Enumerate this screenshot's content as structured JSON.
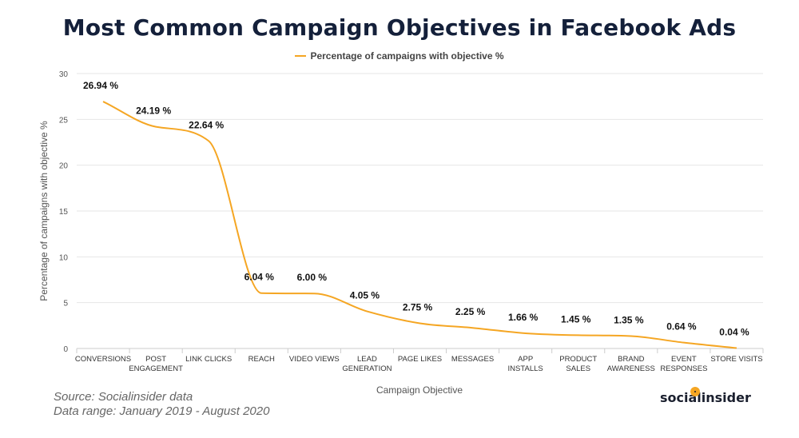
{
  "chart_data": {
    "type": "line",
    "title": "Most Common Campaign Objectives in Facebook Ads",
    "xlabel": "Campaign Objective",
    "ylabel": "Percentage of campaigns with objective %",
    "ylim": [
      0,
      30
    ],
    "yticks": [
      0,
      5,
      10,
      15,
      20,
      25,
      30
    ],
    "grid": true,
    "legend_position": "top-center",
    "categories": [
      [
        "CONVERSIONS"
      ],
      [
        "POST",
        "ENGAGEMENT"
      ],
      [
        "LINK CLICKS"
      ],
      [
        "REACH"
      ],
      [
        "VIDEO VIEWS"
      ],
      [
        "LEAD",
        "GENERATION"
      ],
      [
        "PAGE LIKES"
      ],
      [
        "MESSAGES"
      ],
      [
        "APP",
        "INSTALLS"
      ],
      [
        "PRODUCT",
        "SALES"
      ],
      [
        "BRAND",
        "AWARENESS"
      ],
      [
        "EVENT",
        "RESPONSES"
      ],
      [
        "STORE VISITS"
      ]
    ],
    "series": [
      {
        "name": "Percentage of campaigns with objective %",
        "color": "#f5a623",
        "values": [
          26.94,
          24.19,
          22.64,
          6.04,
          6.0,
          4.05,
          2.75,
          2.25,
          1.66,
          1.45,
          1.35,
          0.64,
          0.04
        ],
        "labels": [
          "26.94 %",
          "24.19 %",
          "22.64 %",
          "6.04 %",
          "6.00 %",
          "4.05 %",
          "2.75 %",
          "2.25 %",
          "1.66 %",
          "1.45 %",
          "1.35 %",
          "0.64 %",
          "0.04 %"
        ]
      }
    ]
  },
  "footer": {
    "source": "Source: Socialinsider data",
    "range": "Data range: January 2019 - August 2020"
  },
  "brand": {
    "name": "socialinsider",
    "accent": "#f5a623"
  }
}
